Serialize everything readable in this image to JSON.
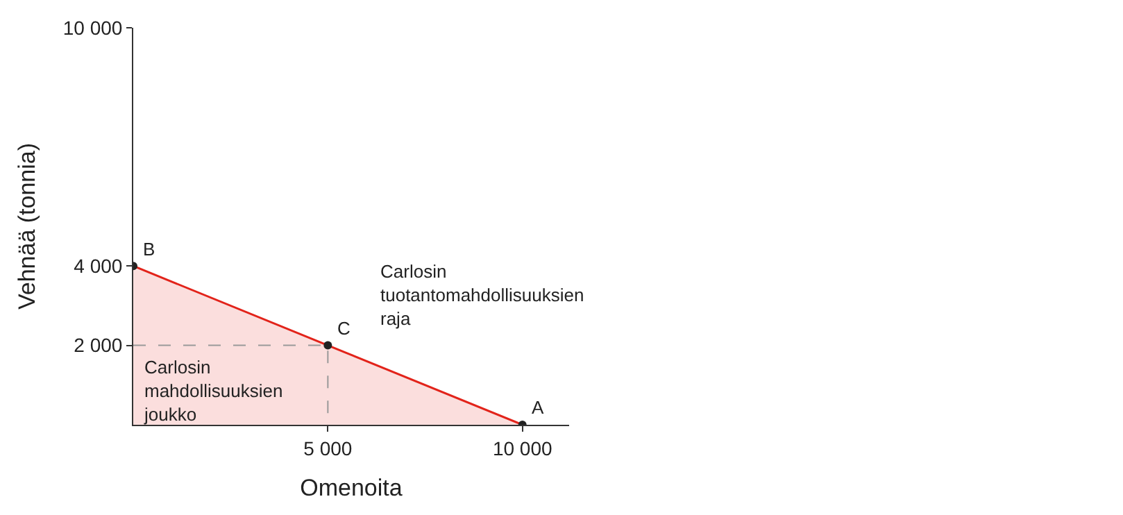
{
  "chart_data": {
    "type": "area",
    "xlabel": "Omenoita",
    "ylabel": "Vehnää (tonnia)",
    "xlim": [
      0,
      11200
    ],
    "ylim": [
      0,
      10000
    ],
    "xticks": [
      {
        "value": 5000,
        "label": "5 000"
      },
      {
        "value": 10000,
        "label": "10 000"
      }
    ],
    "yticks": [
      {
        "value": 2000,
        "label": "2 000"
      },
      {
        "value": 4000,
        "label": "4 000"
      },
      {
        "value": 10000,
        "label": "10 000"
      }
    ],
    "series": [
      {
        "color": "#e2231a",
        "x": [
          0,
          10000
        ],
        "values": [
          4000,
          0
        ]
      },
      {
        "type": "line",
        "color": "#999999",
        "line_style": "dashed",
        "x": [
          0,
          5000,
          5000
        ],
        "values": [
          2000,
          2000,
          0
        ]
      },
      {
        "type": "scatter",
        "color": "#222222",
        "marker": "circle",
        "x": [
          0,
          5000,
          10000
        ],
        "values": [
          4000,
          2000,
          0
        ]
      }
    ],
    "annotations": [
      {
        "text": "B",
        "x": 0,
        "y": 4000
      },
      {
        "text": "C",
        "x": 5000,
        "y": 2000
      },
      {
        "text": "A",
        "x": 10000,
        "y": 0
      },
      "Carlosin\ntuotantomahdollisuuksien\nraja",
      "Carlosin\nmahdollisuuksien\njoukko"
    ]
  }
}
